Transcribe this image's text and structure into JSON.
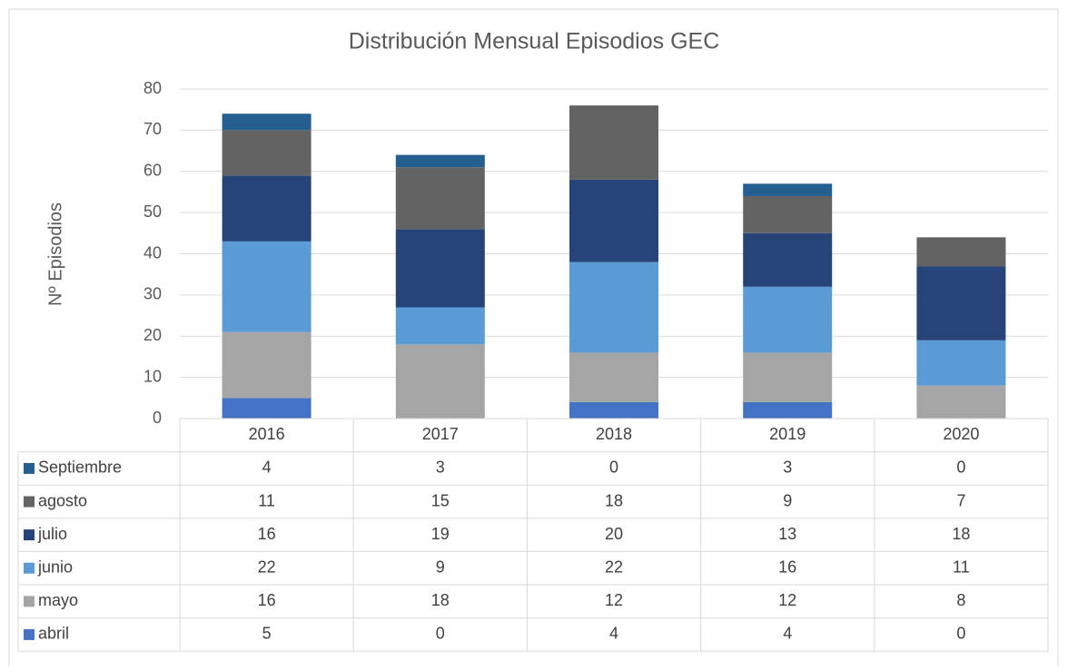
{
  "chart_data": {
    "type": "stacked_bar",
    "title": "Distribución Mensual Episodios GEC",
    "y_label": "Nº Episodios",
    "categories": [
      "2016",
      "2017",
      "2018",
      "2019",
      "2020"
    ],
    "series": [
      {
        "name": "abril",
        "color": "#4472c4",
        "values": [
          5,
          0,
          4,
          4,
          0
        ]
      },
      {
        "name": "mayo",
        "color": "#a5a5a5",
        "values": [
          16,
          18,
          12,
          12,
          8
        ]
      },
      {
        "name": "junio",
        "color": "#5b9bd5",
        "values": [
          22,
          9,
          22,
          16,
          11
        ]
      },
      {
        "name": "julio",
        "color": "#264478",
        "values": [
          16,
          19,
          20,
          13,
          18
        ]
      },
      {
        "name": "agosto",
        "color": "#636363",
        "values": [
          11,
          15,
          18,
          9,
          7
        ]
      },
      {
        "name": "Septiembre",
        "color": "#255e91",
        "values": [
          4,
          3,
          0,
          3,
          0
        ]
      }
    ],
    "ylim": [
      0,
      80
    ],
    "yticks": [
      0,
      10,
      20,
      30,
      40,
      50,
      60,
      70,
      80
    ],
    "grid": true,
    "data_table": true
  }
}
